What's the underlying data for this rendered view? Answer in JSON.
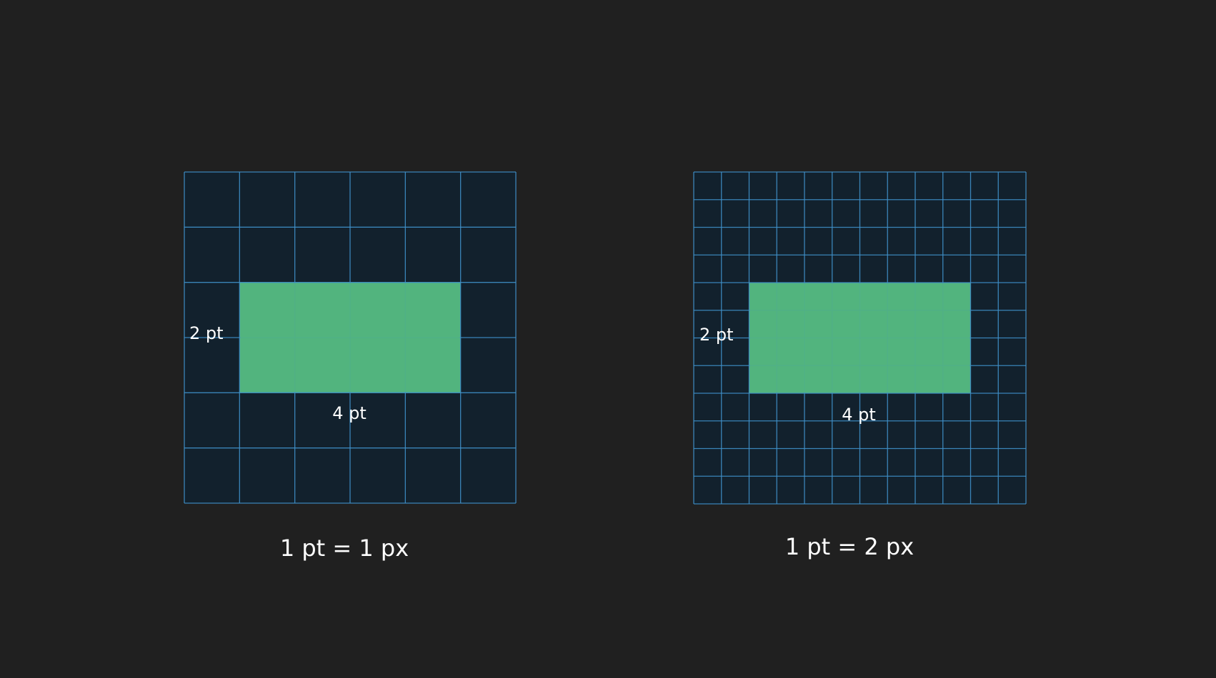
{
  "colors": {
    "background": "#202020",
    "grid_fill": "#12212d",
    "grid_line": "#3f8fc8",
    "highlight": "#52b47e",
    "text": "#ffffff"
  },
  "panels": [
    {
      "grid_divisions": 6,
      "highlight_cells": {
        "col_start": 1,
        "row_start": 2,
        "cols": 4,
        "rows": 2
      },
      "height_label": "2 pt",
      "width_label": "4 pt",
      "caption": "1 pt = 1 px"
    },
    {
      "grid_divisions": 12,
      "highlight_cells": {
        "col_start": 2,
        "row_start": 4,
        "cols": 8,
        "rows": 4
      },
      "height_label": "2 pt",
      "width_label": "4 pt",
      "caption": "1 pt = 2 px"
    }
  ]
}
